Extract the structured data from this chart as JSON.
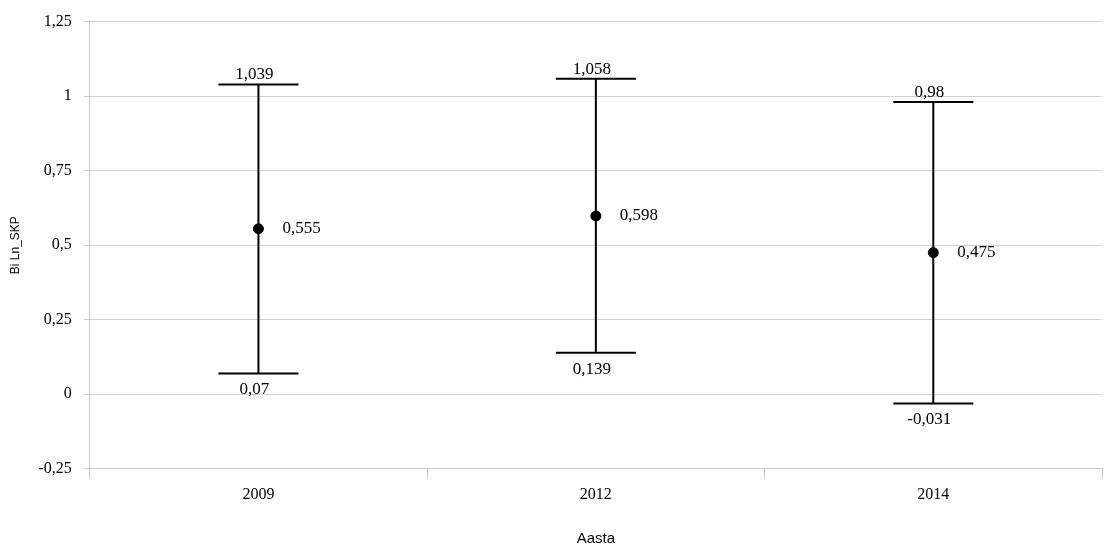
{
  "chart_data": {
    "type": "scatter",
    "xlabel": "Aasta",
    "ylabel": "Bi Ln_SKP",
    "categories": [
      "2009",
      "2012",
      "2014"
    ],
    "values": [
      0.555,
      0.598,
      0.475
    ],
    "color": "#000000",
    "errors": [
      [
        0.07,
        1.039
      ],
      [
        0.139,
        1.058
      ],
      [
        -0.031,
        0.98
      ]
    ],
    "value_labels": [
      "0,555",
      "0,598",
      "0,475"
    ],
    "annotations": [
      {
        "text": "1,039",
        "x": "2009",
        "y": 1.039
      },
      {
        "text": "0,07",
        "x": "2009",
        "y": 0.07
      },
      {
        "text": "1,058",
        "x": "2012",
        "y": 1.058
      },
      {
        "text": "0,139",
        "x": "2012",
        "y": 0.139
      },
      {
        "text": "0,98",
        "x": "2014",
        "y": 0.98
      },
      {
        "text": "-0,031",
        "x": "2014",
        "y": -0.031
      }
    ],
    "ylim": [
      -0.25,
      1.25
    ],
    "yticks": [
      {
        "value": -0.25,
        "label": "-0,25"
      },
      0,
      {
        "value": 0.25,
        "label": "0,25"
      },
      {
        "value": 0.5,
        "label": "0,5"
      },
      {
        "value": 0.75,
        "label": "0,75"
      },
      1,
      {
        "value": 1.25,
        "label": "1,25"
      }
    ],
    "grid": "y",
    "legend": false,
    "marker": "circle"
  }
}
